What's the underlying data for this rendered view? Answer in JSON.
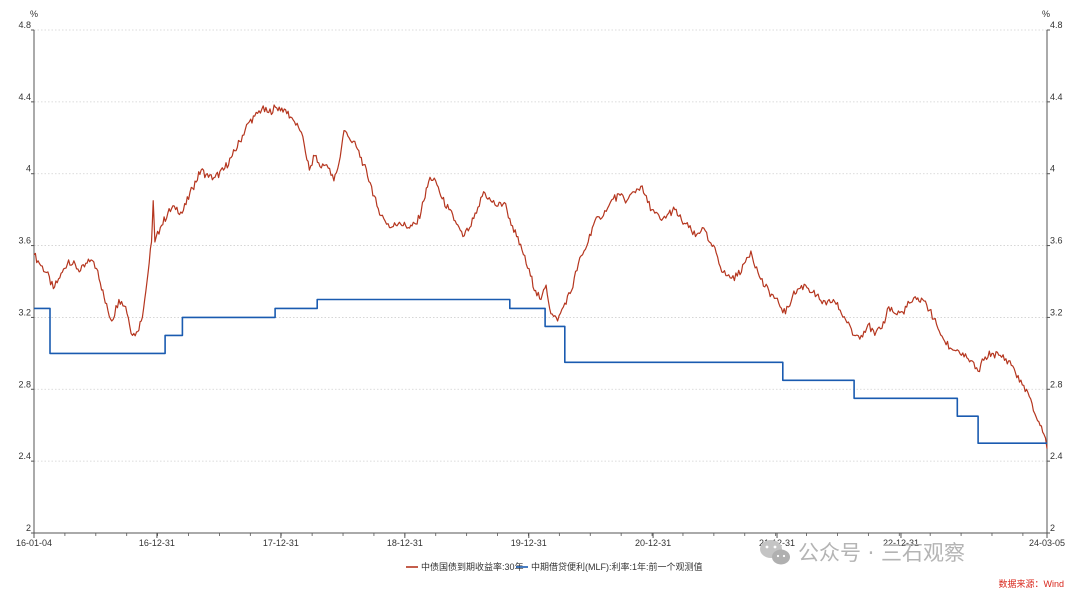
{
  "chart_data": {
    "type": "line",
    "title": "",
    "xlabel": "",
    "ylabel": "%",
    "ylabel_right": "%",
    "ylim": [
      2,
      4.8
    ],
    "yticks": [
      "2",
      "2.4",
      "2.8",
      "3.2",
      "3.6",
      "4",
      "4.4",
      "4.8"
    ],
    "xlim": [
      "2016-01-04",
      "2024-03-05"
    ],
    "xtick_labels": [
      "16-01-04",
      "16-12-31",
      "17-12-31",
      "18-12-31",
      "19-12-31",
      "20-12-31",
      "21-12-31",
      "22-12-31",
      "24-03-05"
    ],
    "xtick_dates": [
      "2016-01-04",
      "2016-12-31",
      "2017-12-31",
      "2018-12-31",
      "2019-12-31",
      "2020-12-31",
      "2021-12-31",
      "2022-12-31",
      "2024-03-05"
    ],
    "grid": "horizontal dotted",
    "legend_position": "bottom",
    "source": "数据来源：Wind",
    "series": [
      {
        "name": "中债国债到期收益率:30年",
        "color": "#b5361f",
        "shape": "line",
        "points": [
          [
            "2016-01-04",
            3.55
          ],
          [
            "2016-01-20",
            3.5
          ],
          [
            "2016-02-10",
            3.45
          ],
          [
            "2016-03-01",
            3.36
          ],
          [
            "2016-03-20",
            3.42
          ],
          [
            "2016-04-15",
            3.52
          ],
          [
            "2016-05-20",
            3.46
          ],
          [
            "2016-06-20",
            3.52
          ],
          [
            "2016-07-10",
            3.46
          ],
          [
            "2016-08-01",
            3.28
          ],
          [
            "2016-08-20",
            3.18
          ],
          [
            "2016-09-10",
            3.3
          ],
          [
            "2016-09-30",
            3.26
          ],
          [
            "2016-10-20",
            3.1
          ],
          [
            "2016-11-01",
            3.12
          ],
          [
            "2016-11-15",
            3.18
          ],
          [
            "2016-11-25",
            3.3
          ],
          [
            "2016-12-05",
            3.45
          ],
          [
            "2016-12-15",
            3.62
          ],
          [
            "2016-12-20",
            3.85
          ],
          [
            "2016-12-25",
            3.62
          ],
          [
            "2017-01-10",
            3.7
          ],
          [
            "2017-02-01",
            3.78
          ],
          [
            "2017-02-20",
            3.82
          ],
          [
            "2017-03-15",
            3.78
          ],
          [
            "2017-04-15",
            3.92
          ],
          [
            "2017-05-10",
            4.02
          ],
          [
            "2017-06-01",
            3.98
          ],
          [
            "2017-06-20",
            3.98
          ],
          [
            "2017-07-15",
            4.02
          ],
          [
            "2017-08-10",
            4.1
          ],
          [
            "2017-09-01",
            4.18
          ],
          [
            "2017-09-25",
            4.28
          ],
          [
            "2017-10-15",
            4.32
          ],
          [
            "2017-11-05",
            4.36
          ],
          [
            "2017-11-25",
            4.34
          ],
          [
            "2017-12-15",
            4.37
          ],
          [
            "2018-01-10",
            4.36
          ],
          [
            "2018-02-05",
            4.3
          ],
          [
            "2018-02-25",
            4.24
          ],
          [
            "2018-03-10",
            4.16
          ],
          [
            "2018-03-25",
            4.02
          ],
          [
            "2018-04-10",
            4.1
          ],
          [
            "2018-04-25",
            4.04
          ],
          [
            "2018-05-15",
            4.05
          ],
          [
            "2018-06-05",
            3.96
          ],
          [
            "2018-06-20",
            4.06
          ],
          [
            "2018-07-05",
            4.24
          ],
          [
            "2018-07-20",
            4.2
          ],
          [
            "2018-08-10",
            4.15
          ],
          [
            "2018-09-01",
            4.05
          ],
          [
            "2018-09-20",
            3.95
          ],
          [
            "2018-10-10",
            3.82
          ],
          [
            "2018-10-30",
            3.75
          ],
          [
            "2018-11-20",
            3.7
          ],
          [
            "2018-12-15",
            3.73
          ],
          [
            "2019-01-10",
            3.7
          ],
          [
            "2019-02-05",
            3.72
          ],
          [
            "2019-02-25",
            3.85
          ],
          [
            "2019-03-15",
            3.98
          ],
          [
            "2019-04-01",
            3.96
          ],
          [
            "2019-04-20",
            3.86
          ],
          [
            "2019-05-10",
            3.8
          ],
          [
            "2019-06-01",
            3.72
          ],
          [
            "2019-06-20",
            3.65
          ],
          [
            "2019-07-10",
            3.7
          ],
          [
            "2019-07-30",
            3.78
          ],
          [
            "2019-08-20",
            3.9
          ],
          [
            "2019-09-10",
            3.85
          ],
          [
            "2019-10-01",
            3.82
          ],
          [
            "2019-10-20",
            3.84
          ],
          [
            "2019-11-05",
            3.75
          ],
          [
            "2019-11-25",
            3.65
          ],
          [
            "2019-12-15",
            3.55
          ],
          [
            "2020-01-05",
            3.43
          ],
          [
            "2020-01-20",
            3.35
          ],
          [
            "2020-02-05",
            3.3
          ],
          [
            "2020-02-20",
            3.38
          ],
          [
            "2020-03-05",
            3.22
          ],
          [
            "2020-03-25",
            3.18
          ],
          [
            "2020-04-15",
            3.28
          ],
          [
            "2020-05-05",
            3.35
          ],
          [
            "2020-05-25",
            3.5
          ],
          [
            "2020-06-15",
            3.58
          ],
          [
            "2020-07-05",
            3.7
          ],
          [
            "2020-07-25",
            3.76
          ],
          [
            "2020-08-15",
            3.79
          ],
          [
            "2020-09-05",
            3.86
          ],
          [
            "2020-09-25",
            3.88
          ],
          [
            "2020-10-15",
            3.85
          ],
          [
            "2020-11-05",
            3.9
          ],
          [
            "2020-11-25",
            3.93
          ],
          [
            "2020-12-15",
            3.84
          ],
          [
            "2021-01-05",
            3.78
          ],
          [
            "2021-01-25",
            3.74
          ],
          [
            "2021-02-15",
            3.78
          ],
          [
            "2021-03-05",
            3.8
          ],
          [
            "2021-03-25",
            3.74
          ],
          [
            "2021-04-15",
            3.7
          ],
          [
            "2021-05-05",
            3.65
          ],
          [
            "2021-05-25",
            3.7
          ],
          [
            "2021-06-15",
            3.62
          ],
          [
            "2021-07-05",
            3.56
          ],
          [
            "2021-07-25",
            3.45
          ],
          [
            "2021-08-15",
            3.42
          ],
          [
            "2021-09-05",
            3.43
          ],
          [
            "2021-09-25",
            3.5
          ],
          [
            "2021-10-15",
            3.57
          ],
          [
            "2021-11-05",
            3.45
          ],
          [
            "2021-11-25",
            3.37
          ],
          [
            "2021-12-15",
            3.33
          ],
          [
            "2022-01-05",
            3.28
          ],
          [
            "2022-01-25",
            3.22
          ],
          [
            "2022-02-15",
            3.32
          ],
          [
            "2022-03-05",
            3.36
          ],
          [
            "2022-03-25",
            3.38
          ],
          [
            "2022-04-15",
            3.34
          ],
          [
            "2022-05-05",
            3.3
          ],
          [
            "2022-05-25",
            3.27
          ],
          [
            "2022-06-15",
            3.3
          ],
          [
            "2022-07-05",
            3.24
          ],
          [
            "2022-07-25",
            3.17
          ],
          [
            "2022-08-15",
            3.1
          ],
          [
            "2022-09-05",
            3.1
          ],
          [
            "2022-09-25",
            3.16
          ],
          [
            "2022-10-15",
            3.1
          ],
          [
            "2022-11-05",
            3.14
          ],
          [
            "2022-11-25",
            3.26
          ],
          [
            "2022-12-15",
            3.22
          ],
          [
            "2023-01-05",
            3.23
          ],
          [
            "2023-01-25",
            3.28
          ],
          [
            "2023-02-15",
            3.3
          ],
          [
            "2023-03-05",
            3.3
          ],
          [
            "2023-03-25",
            3.24
          ],
          [
            "2023-04-15",
            3.16
          ],
          [
            "2023-05-05",
            3.08
          ],
          [
            "2023-05-25",
            3.03
          ],
          [
            "2023-06-15",
            3.02
          ],
          [
            "2023-07-05",
            2.98
          ],
          [
            "2023-07-25",
            2.96
          ],
          [
            "2023-08-15",
            2.9
          ],
          [
            "2023-09-05",
            2.98
          ],
          [
            "2023-09-25",
            3.0
          ],
          [
            "2023-10-15",
            2.99
          ],
          [
            "2023-11-05",
            2.97
          ],
          [
            "2023-11-25",
            2.93
          ],
          [
            "2023-12-15",
            2.84
          ],
          [
            "2024-01-05",
            2.8
          ],
          [
            "2024-01-25",
            2.68
          ],
          [
            "2024-02-10",
            2.62
          ],
          [
            "2024-02-25",
            2.55
          ],
          [
            "2024-03-05",
            2.47
          ]
        ]
      },
      {
        "name": "中期借贷便利(MLF):利率:1年:前一个观测值",
        "color": "#1a5bb0",
        "shape": "step",
        "points": [
          [
            "2016-01-04",
            3.25
          ],
          [
            "2016-02-20",
            3.0
          ],
          [
            "2017-01-24",
            3.1
          ],
          [
            "2017-03-16",
            3.2
          ],
          [
            "2017-12-14",
            3.25
          ],
          [
            "2018-04-17",
            3.3
          ],
          [
            "2019-11-05",
            3.25
          ],
          [
            "2020-02-17",
            3.15
          ],
          [
            "2020-04-15",
            2.95
          ],
          [
            "2022-01-17",
            2.85
          ],
          [
            "2022-08-15",
            2.75
          ],
          [
            "2023-06-15",
            2.65
          ],
          [
            "2023-08-15",
            2.5
          ],
          [
            "2024-03-05",
            2.5
          ]
        ]
      }
    ]
  },
  "watermark": {
    "icon": "wechat-icon",
    "text": "公众号 · 三石观察"
  }
}
